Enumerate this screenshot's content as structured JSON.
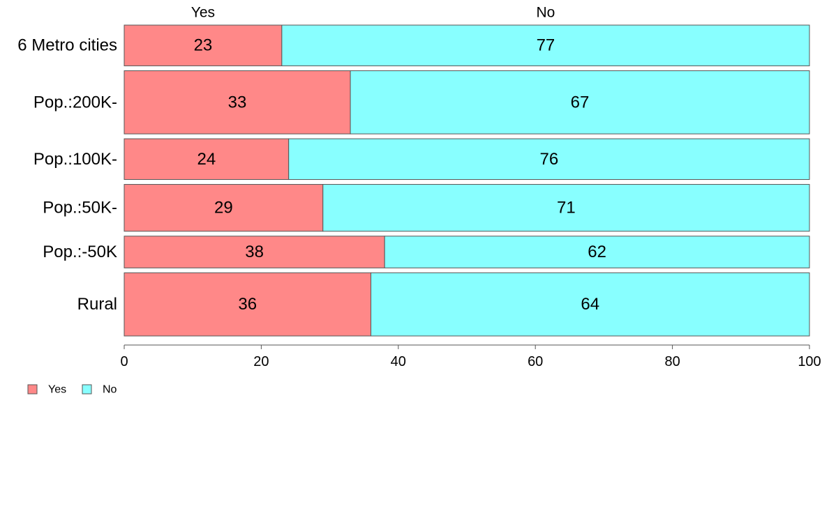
{
  "chart_data": {
    "type": "bar",
    "orientation": "horizontal",
    "stacked": true,
    "categories": [
      "6 Metro cities",
      "Pop.:200K-",
      "Pop.:100K-",
      "Pop.:50K-",
      "Pop.:-50K",
      "Rural"
    ],
    "category_weights": [
      1.0,
      1.55,
      1.0,
      1.15,
      0.78,
      1.55
    ],
    "series": [
      {
        "name": "Yes",
        "values": [
          23,
          33,
          24,
          29,
          38,
          36
        ],
        "color": "#ff8888"
      },
      {
        "name": "No",
        "values": [
          77,
          67,
          76,
          71,
          62,
          64
        ],
        "color": "#88ffff"
      }
    ],
    "top_labels": [
      "Yes",
      "No"
    ],
    "xlim": [
      0,
      100
    ],
    "xticks": [
      0,
      20,
      40,
      60,
      80,
      100
    ],
    "title": "",
    "xlabel": "",
    "ylabel": "",
    "grid": false,
    "legend": {
      "placement": "bottom-left",
      "entries": [
        "Yes",
        "No"
      ]
    },
    "colors": {
      "border": "#555555",
      "axis": "#555555"
    }
  }
}
